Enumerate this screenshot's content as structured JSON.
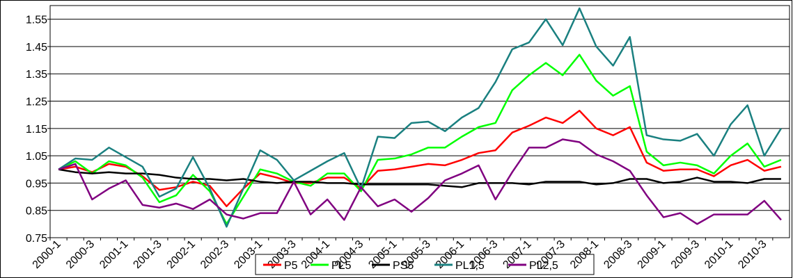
{
  "chart_data": {
    "type": "line",
    "categories": [
      "2000-1",
      null,
      "2000-3",
      null,
      "2001-1",
      null,
      "2001-3",
      null,
      "2002-1",
      null,
      "2002-3",
      null,
      "2003-1",
      null,
      "2003-3",
      null,
      "2004-1",
      null,
      "2004-3",
      null,
      "2005-1",
      null,
      "2005-3",
      null,
      "2006-1",
      null,
      "2006-3",
      null,
      "2007-1",
      null,
      "2007-3",
      null,
      "2008-1",
      null,
      "2008-3",
      null,
      "2009-1",
      null,
      "2009-3",
      null,
      "2010-1",
      null,
      "2010-3",
      null
    ],
    "series": [
      {
        "name": "P5",
        "color": "#ff0000",
        "values": [
          1.0,
          1.01,
          0.99,
          1.02,
          1.01,
          0.975,
          0.925,
          0.935,
          0.955,
          0.94,
          0.865,
          0.93,
          0.985,
          0.97,
          0.95,
          0.95,
          0.97,
          0.97,
          0.93,
          0.995,
          1.0,
          1.01,
          1.02,
          1.015,
          1.035,
          1.06,
          1.07,
          1.135,
          1.16,
          1.19,
          1.17,
          1.215,
          1.15,
          1.125,
          1.155,
          1.025,
          0.995,
          1.0,
          1.0,
          0.975,
          1.015,
          1.035,
          0.995,
          1.01
        ]
      },
      {
        "name": "PL5",
        "color": "#00ff00",
        "values": [
          1.0,
          1.03,
          0.985,
          1.03,
          1.015,
          0.97,
          0.88,
          0.905,
          0.98,
          0.92,
          0.8,
          0.9,
          1.0,
          0.985,
          0.955,
          0.94,
          0.985,
          0.985,
          0.92,
          1.035,
          1.04,
          1.055,
          1.08,
          1.08,
          1.12,
          1.155,
          1.17,
          1.29,
          1.345,
          1.39,
          1.345,
          1.42,
          1.325,
          1.27,
          1.305,
          1.065,
          1.015,
          1.025,
          1.015,
          0.985,
          1.05,
          1.095,
          1.01,
          1.035
        ]
      },
      {
        "name": "PS5",
        "color": "#000000",
        "values": [
          1.0,
          0.99,
          0.985,
          0.99,
          0.985,
          0.985,
          0.98,
          0.97,
          0.965,
          0.965,
          0.96,
          0.965,
          0.955,
          0.95,
          0.955,
          0.955,
          0.95,
          0.95,
          0.945,
          0.945,
          0.945,
          0.945,
          0.945,
          0.94,
          0.935,
          0.95,
          0.95,
          0.95,
          0.945,
          0.955,
          0.955,
          0.955,
          0.945,
          0.95,
          0.965,
          0.965,
          0.95,
          0.955,
          0.97,
          0.955,
          0.955,
          0.95,
          0.965,
          0.965
        ]
      },
      {
        "name": "PL1,5",
        "color": "#1a8080",
        "values": [
          1.0,
          1.04,
          1.035,
          1.08,
          1.045,
          1.01,
          0.9,
          0.93,
          1.045,
          0.93,
          0.79,
          0.93,
          1.07,
          1.035,
          0.96,
          0.995,
          1.03,
          1.06,
          0.93,
          1.12,
          1.115,
          1.17,
          1.175,
          1.14,
          1.19,
          1.225,
          1.32,
          1.44,
          1.465,
          1.55,
          1.455,
          1.59,
          1.45,
          1.38,
          1.485,
          1.125,
          1.11,
          1.105,
          1.13,
          1.05,
          1.165,
          1.235,
          1.05,
          1.15
        ]
      },
      {
        "name": "PL2,5",
        "color": "#800080",
        "values": [
          1.0,
          1.02,
          0.89,
          0.93,
          0.96,
          0.87,
          0.86,
          0.875,
          0.855,
          0.89,
          0.835,
          0.82,
          0.84,
          0.84,
          0.955,
          0.835,
          0.89,
          0.815,
          0.935,
          0.865,
          0.89,
          0.845,
          0.895,
          0.96,
          0.985,
          1.015,
          0.89,
          0.99,
          1.08,
          1.08,
          1.11,
          1.1,
          1.055,
          1.03,
          0.995,
          0.905,
          0.825,
          0.84,
          0.8,
          0.835,
          0.835,
          0.835,
          0.885,
          0.815
        ]
      }
    ],
    "ylim": [
      0.75,
      1.6
    ],
    "yticks": [
      0.75,
      0.85,
      0.95,
      1.05,
      1.15,
      1.25,
      1.35,
      1.45,
      1.55
    ],
    "grid": true,
    "legend": "bottom"
  }
}
